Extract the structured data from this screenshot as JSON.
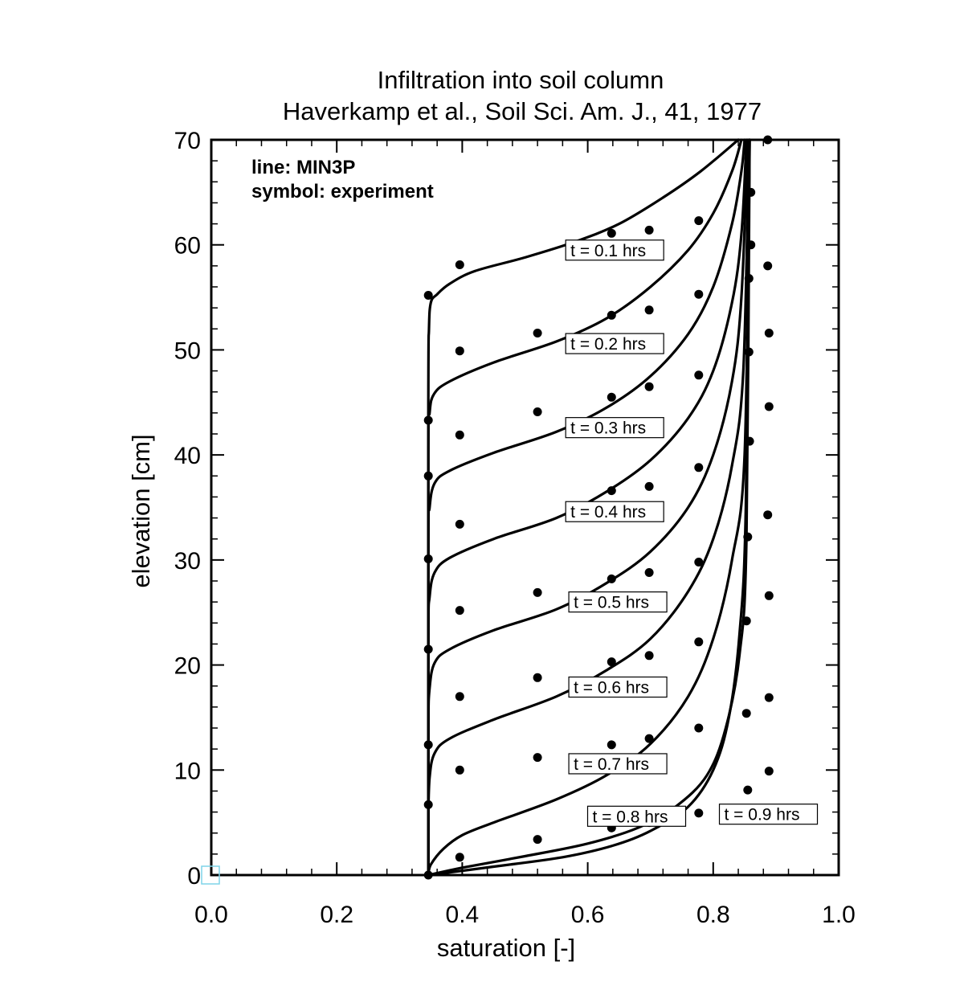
{
  "chart_data": {
    "type": "line",
    "title": "Infiltration into soil column",
    "subtitle": "Haverkamp et al., Soil Sci. Am. J., 41, 1977",
    "xlabel": "saturation [-]",
    "ylabel": "elevation [cm]",
    "xlim": [
      0.0,
      1.0
    ],
    "ylim": [
      0,
      70
    ],
    "x_ticks": [
      "0.0",
      "0.2",
      "0.4",
      "0.6",
      "0.8",
      "1.0"
    ],
    "y_ticks": [
      "0",
      "10",
      "20",
      "30",
      "40",
      "50",
      "60",
      "70"
    ],
    "legend": [
      "line: MIN3P",
      "symbol: experiment"
    ],
    "legend_position": "top-left",
    "grid": false,
    "series": [
      {
        "name": "t = 0.1 hrs",
        "kind": "line",
        "points": [
          [
            0.346,
            0
          ],
          [
            0.346,
            45
          ],
          [
            0.347,
            52
          ],
          [
            0.35,
            54.5
          ],
          [
            0.36,
            55.3
          ],
          [
            0.38,
            56.3
          ],
          [
            0.42,
            57.5
          ],
          [
            0.5,
            58.8
          ],
          [
            0.58,
            60.3
          ],
          [
            0.65,
            62
          ],
          [
            0.72,
            64.5
          ],
          [
            0.78,
            67
          ],
          [
            0.84,
            70
          ]
        ]
      },
      {
        "name": "t = 0.2 hrs",
        "kind": "line",
        "points": [
          [
            0.346,
            0
          ],
          [
            0.346,
            40
          ],
          [
            0.348,
            44
          ],
          [
            0.355,
            45.8
          ],
          [
            0.38,
            47
          ],
          [
            0.45,
            48.8
          ],
          [
            0.55,
            50.8
          ],
          [
            0.63,
            53
          ],
          [
            0.7,
            56
          ],
          [
            0.76,
            59.5
          ],
          [
            0.8,
            63
          ],
          [
            0.83,
            67
          ],
          [
            0.845,
            70
          ]
        ]
      },
      {
        "name": "t = 0.3 hrs",
        "kind": "line",
        "points": [
          [
            0.346,
            0
          ],
          [
            0.346,
            31
          ],
          [
            0.348,
            35
          ],
          [
            0.356,
            37.3
          ],
          [
            0.38,
            38.5
          ],
          [
            0.45,
            40.2
          ],
          [
            0.55,
            42.2
          ],
          [
            0.63,
            44.5
          ],
          [
            0.7,
            47.5
          ],
          [
            0.76,
            51.5
          ],
          [
            0.8,
            56
          ],
          [
            0.83,
            62
          ],
          [
            0.845,
            67
          ],
          [
            0.85,
            70
          ]
        ]
      },
      {
        "name": "t = 0.4 hrs",
        "kind": "line",
        "points": [
          [
            0.346,
            0
          ],
          [
            0.346,
            22.5
          ],
          [
            0.348,
            26.5
          ],
          [
            0.356,
            28.8
          ],
          [
            0.38,
            30.2
          ],
          [
            0.45,
            32
          ],
          [
            0.55,
            34
          ],
          [
            0.63,
            36.5
          ],
          [
            0.7,
            39.5
          ],
          [
            0.76,
            43.5
          ],
          [
            0.8,
            48
          ],
          [
            0.83,
            54.5
          ],
          [
            0.845,
            61
          ],
          [
            0.853,
            70
          ]
        ]
      },
      {
        "name": "t = 0.5 hrs",
        "kind": "line",
        "points": [
          [
            0.346,
            0
          ],
          [
            0.346,
            14
          ],
          [
            0.348,
            17.8
          ],
          [
            0.356,
            20.2
          ],
          [
            0.38,
            21.5
          ],
          [
            0.45,
            23.3
          ],
          [
            0.55,
            25.3
          ],
          [
            0.63,
            27.8
          ],
          [
            0.7,
            30.8
          ],
          [
            0.76,
            35
          ],
          [
            0.8,
            40
          ],
          [
            0.83,
            47
          ],
          [
            0.845,
            55
          ],
          [
            0.855,
            70
          ]
        ]
      },
      {
        "name": "t = 0.6 hrs",
        "kind": "line",
        "points": [
          [
            0.346,
            0
          ],
          [
            0.346,
            5.5
          ],
          [
            0.348,
            9.3
          ],
          [
            0.356,
            11.6
          ],
          [
            0.38,
            13
          ],
          [
            0.45,
            14.8
          ],
          [
            0.55,
            17
          ],
          [
            0.63,
            19.5
          ],
          [
            0.7,
            22.5
          ],
          [
            0.76,
            27
          ],
          [
            0.8,
            32
          ],
          [
            0.83,
            39
          ],
          [
            0.848,
            48
          ],
          [
            0.857,
            70
          ]
        ]
      },
      {
        "name": "t = 0.7 hrs",
        "kind": "line",
        "points": [
          [
            0.346,
            0
          ],
          [
            0.35,
            1
          ],
          [
            0.37,
            2.5
          ],
          [
            0.4,
            3.8
          ],
          [
            0.45,
            5
          ],
          [
            0.55,
            7.2
          ],
          [
            0.63,
            9.5
          ],
          [
            0.7,
            12.5
          ],
          [
            0.76,
            17
          ],
          [
            0.8,
            22.5
          ],
          [
            0.83,
            30
          ],
          [
            0.85,
            40
          ],
          [
            0.858,
            70
          ]
        ]
      },
      {
        "name": "t = 0.8 hrs",
        "kind": "line",
        "points": [
          [
            0.346,
            0
          ],
          [
            0.4,
            0.7
          ],
          [
            0.5,
            1.8
          ],
          [
            0.6,
            3
          ],
          [
            0.68,
            4.5
          ],
          [
            0.74,
            6.5
          ],
          [
            0.79,
            9.5
          ],
          [
            0.82,
            14
          ],
          [
            0.842,
            21
          ],
          [
            0.853,
            32
          ],
          [
            0.858,
            70
          ]
        ]
      },
      {
        "name": "t = 0.9 hrs",
        "kind": "line",
        "points": [
          [
            0.346,
            0
          ],
          [
            0.45,
            0.8
          ],
          [
            0.56,
            1.7
          ],
          [
            0.64,
            2.8
          ],
          [
            0.7,
            4.2
          ],
          [
            0.76,
            6.5
          ],
          [
            0.8,
            10
          ],
          [
            0.825,
            15
          ],
          [
            0.842,
            23
          ],
          [
            0.852,
            35
          ],
          [
            0.858,
            70
          ]
        ]
      },
      {
        "name": "experiment",
        "kind": "scatter",
        "points": [
          [
            0.346,
            55.2
          ],
          [
            0.396,
            58.1
          ],
          [
            0.638,
            61.1
          ],
          [
            0.698,
            61.4
          ],
          [
            0.777,
            62.3
          ],
          [
            0.52,
            51.6
          ],
          [
            0.638,
            53.3
          ],
          [
            0.698,
            53.8
          ],
          [
            0.777,
            55.3
          ],
          [
            0.52,
            44.1
          ],
          [
            0.638,
            45.5
          ],
          [
            0.698,
            46.5
          ],
          [
            0.777,
            47.6
          ],
          [
            0.346,
            43.3
          ],
          [
            0.396,
            49.9
          ],
          [
            0.396,
            41.9
          ],
          [
            0.346,
            38
          ],
          [
            0.396,
            33.4
          ],
          [
            0.638,
            36.6
          ],
          [
            0.698,
            37
          ],
          [
            0.777,
            38.8
          ],
          [
            0.346,
            30.1
          ],
          [
            0.396,
            25.2
          ],
          [
            0.52,
            26.9
          ],
          [
            0.638,
            28.2
          ],
          [
            0.698,
            28.8
          ],
          [
            0.777,
            29.8
          ],
          [
            0.346,
            21.5
          ],
          [
            0.396,
            17
          ],
          [
            0.52,
            18.8
          ],
          [
            0.638,
            20.3
          ],
          [
            0.698,
            20.9
          ],
          [
            0.777,
            22.2
          ],
          [
            0.346,
            12.4
          ],
          [
            0.396,
            10
          ],
          [
            0.52,
            11.2
          ],
          [
            0.638,
            12.4
          ],
          [
            0.698,
            13
          ],
          [
            0.777,
            14
          ],
          [
            0.346,
            6.7
          ],
          [
            0.396,
            1.7
          ],
          [
            0.52,
            3.4
          ],
          [
            0.638,
            4.5
          ],
          [
            0.698,
            5
          ],
          [
            0.777,
            5.9
          ],
          [
            0.346,
            0
          ],
          [
            0.887,
            70
          ],
          [
            0.887,
            58
          ],
          [
            0.889,
            51.6
          ],
          [
            0.889,
            44.6
          ],
          [
            0.887,
            34.3
          ],
          [
            0.889,
            26.6
          ],
          [
            0.889,
            16.9
          ],
          [
            0.889,
            9.9
          ],
          [
            0.857,
            56.8
          ],
          [
            0.857,
            49.8
          ],
          [
            0.858,
            41.3
          ],
          [
            0.855,
            32.2
          ],
          [
            0.853,
            24.2
          ],
          [
            0.853,
            15.4
          ],
          [
            0.855,
            8.1
          ],
          [
            0.86,
            65
          ],
          [
            0.86,
            60
          ]
        ]
      }
    ],
    "curve_labels": [
      {
        "text": "t = 0.1 hrs",
        "x": 0.57,
        "y": 59.5
      },
      {
        "text": "t = 0.2 hrs",
        "x": 0.57,
        "y": 50.6
      },
      {
        "text": "t = 0.3 hrs",
        "x": 0.57,
        "y": 42.6
      },
      {
        "text": "t = 0.4 hrs",
        "x": 0.57,
        "y": 34.6
      },
      {
        "text": "t = 0.5 hrs",
        "x": 0.575,
        "y": 26
      },
      {
        "text": "t = 0.6 hrs",
        "x": 0.575,
        "y": 17.9
      },
      {
        "text": "t = 0.7 hrs",
        "x": 0.575,
        "y": 10.6
      },
      {
        "text": "t = 0.8 hrs",
        "x": 0.605,
        "y": 5.6
      },
      {
        "text": "t = 0.9 hrs",
        "x": 0.815,
        "y": 5.8
      }
    ]
  }
}
